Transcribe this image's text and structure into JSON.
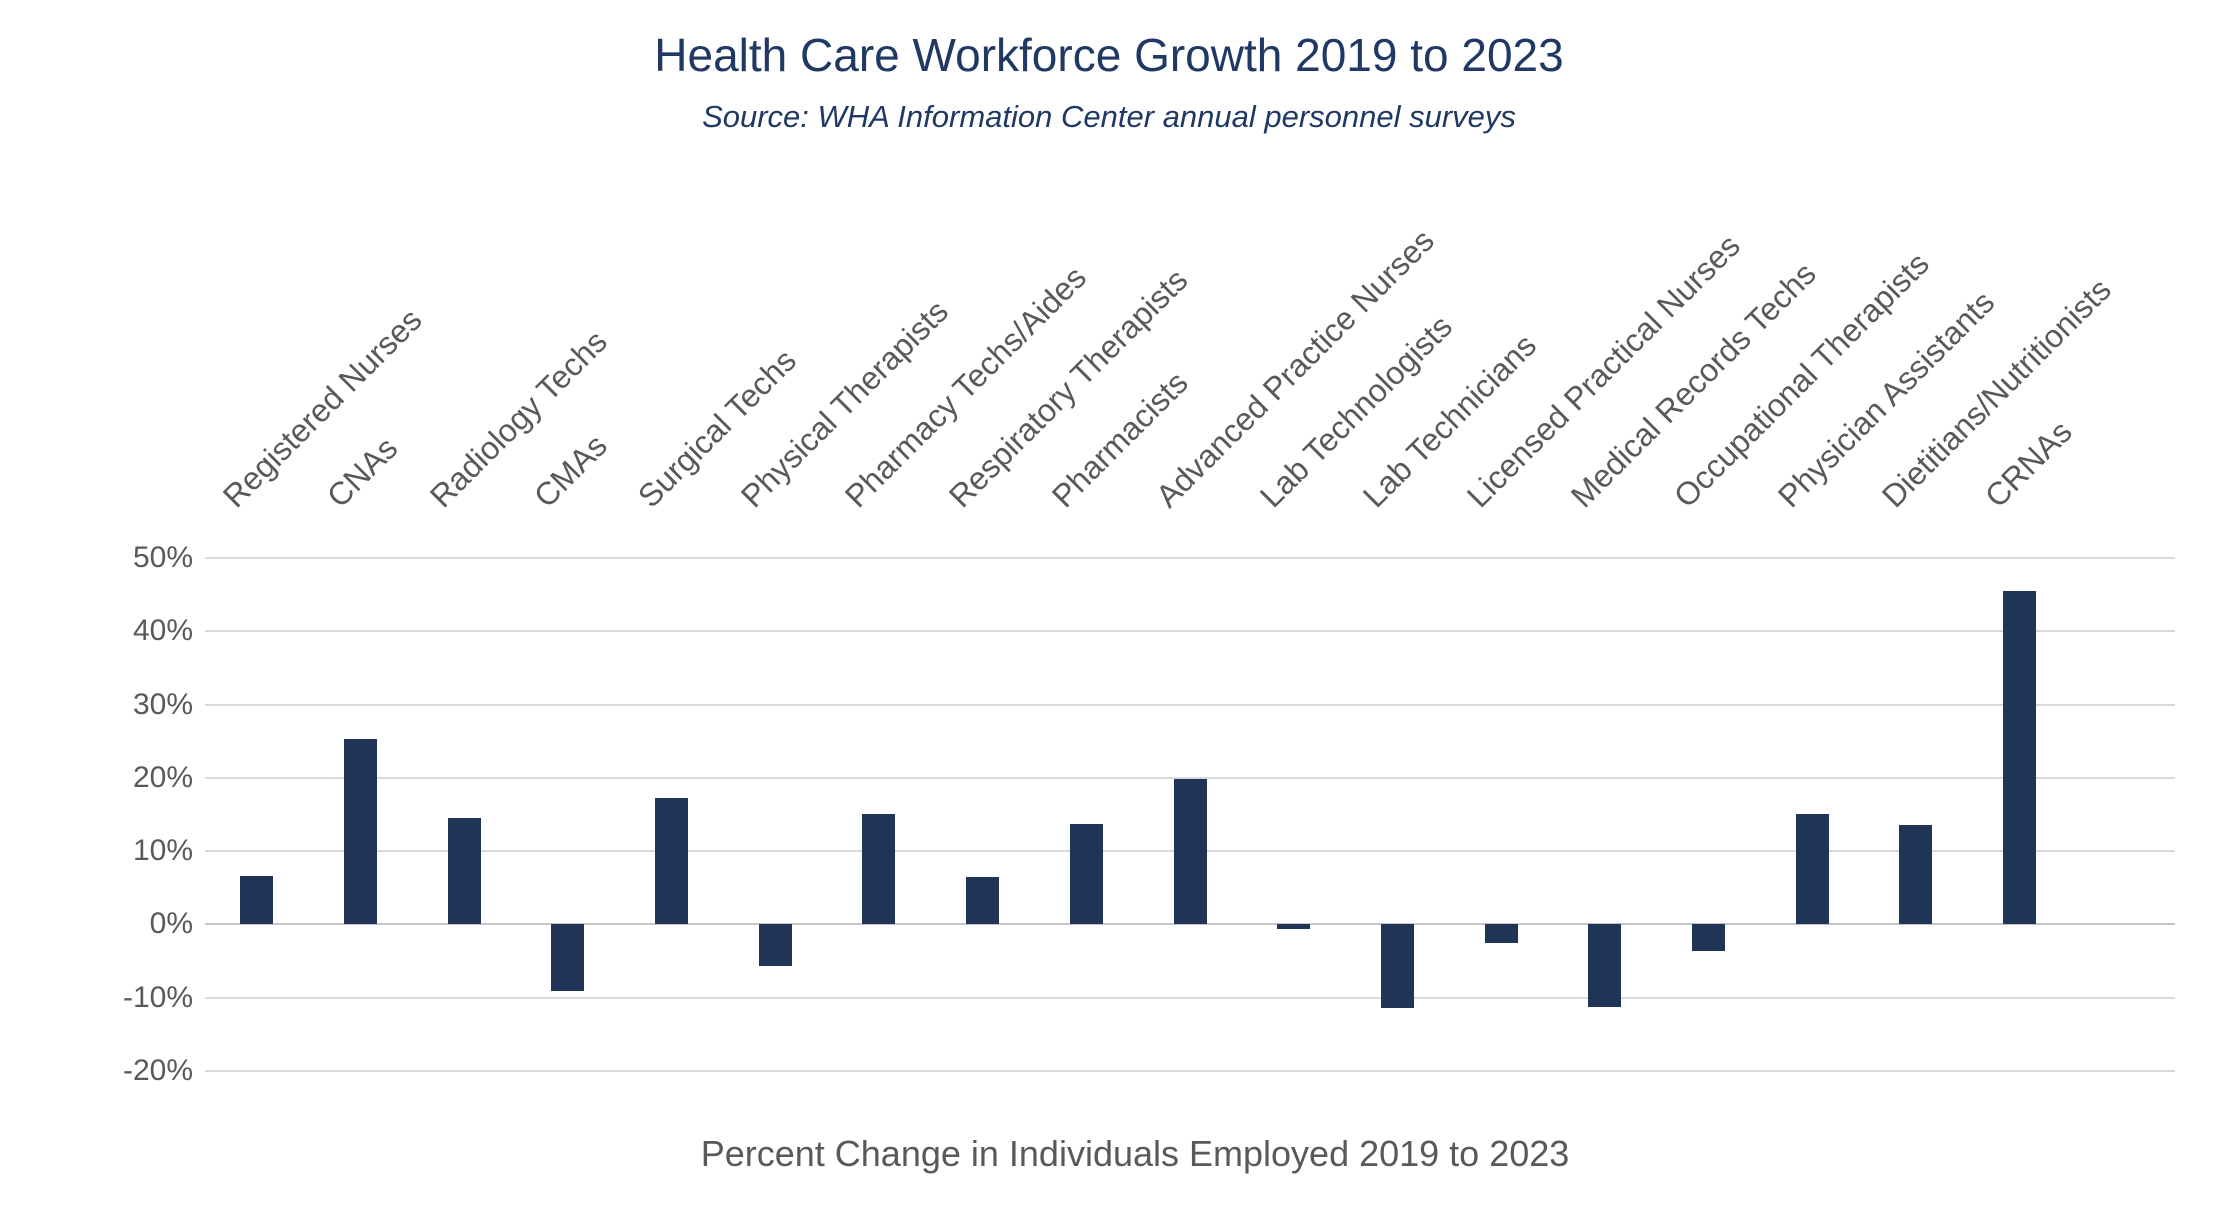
{
  "chart_data": {
    "type": "bar",
    "title": "Health Care Workforce Growth 2019 to 2023",
    "subtitle": "Source: WHA Information Center annual personnel surveys",
    "xlabel": "Percent Change in Individuals Employed 2019 to 2023",
    "ylabel": "",
    "categories": [
      "Registered Nurses",
      "CNAs",
      "Radiology Techs",
      "CMAs",
      "Surgical Techs",
      "Physical Therapists",
      "Pharmacy Techs/Aides",
      "Respiratory Therapists",
      "Pharmacists",
      "Advanced Practice Nurses",
      "Lab Technologists",
      "Lab Technicians",
      "Licensed Practical Nurses",
      "Medical Records Techs",
      "Occupational Therapists",
      "Physician Assistants",
      "Dietitians/Nutritionists",
      "CRNAs"
    ],
    "values": [
      6.6,
      25.3,
      14.5,
      -9.1,
      17.3,
      -5.7,
      15.1,
      6.5,
      13.7,
      19.9,
      -0.6,
      -11.4,
      -2.5,
      -11.3,
      -3.6,
      15.1,
      13.6,
      45.5
    ],
    "y_ticks": [
      50,
      40,
      30,
      20,
      10,
      0,
      -10,
      -20
    ],
    "y_tick_labels": [
      "50%",
      "40%",
      "30%",
      "20%",
      "10%",
      "0%",
      "-10%",
      "-20%"
    ],
    "ylim": [
      -20,
      50
    ],
    "grid": true,
    "legend": "none",
    "colors": {
      "bar": "#1f3457",
      "title": "#1f3864",
      "axis_text": "#595959",
      "gridline": "#d9d9d9",
      "zero_line": "#c6c6c6"
    }
  }
}
